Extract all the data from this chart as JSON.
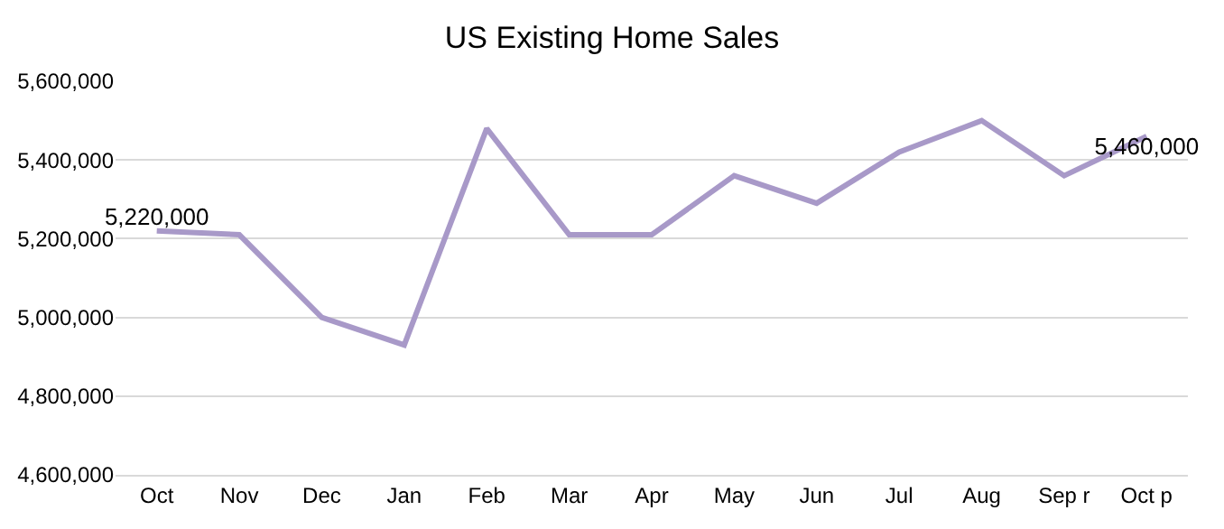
{
  "chart_data": {
    "type": "line",
    "title": "US Existing Home Sales",
    "categories": [
      "Oct",
      "Nov",
      "Dec",
      "Jan",
      "Feb",
      "Mar",
      "Apr",
      "May",
      "Jun",
      "Jul",
      "Aug",
      "Sep r",
      "Oct p"
    ],
    "series": [
      {
        "color": "#a899c8",
        "values": [
          5220000,
          5210000,
          5000000,
          4930000,
          5480000,
          5210000,
          5210000,
          5360000,
          5290000,
          5420000,
          5500000,
          5360000,
          5460000
        ],
        "value_labels": [
          "5,220,000",
          null,
          null,
          null,
          null,
          null,
          null,
          null,
          null,
          null,
          null,
          null,
          "5,460,000"
        ]
      }
    ],
    "ylim": [
      4600000,
      5600000
    ],
    "yticks": [
      {
        "value": 4600000,
        "label": "4,600,000"
      },
      {
        "value": 4800000,
        "label": "4,800,000"
      },
      {
        "value": 5000000,
        "label": "5,000,000"
      },
      {
        "value": 5200000,
        "label": "5,200,000"
      },
      {
        "value": 5400000,
        "label": "5,400,000"
      },
      {
        "value": 5600000,
        "label": "5,600,000"
      }
    ],
    "grid": "y",
    "legend": false,
    "marker": "none",
    "line_style": "solid"
  }
}
